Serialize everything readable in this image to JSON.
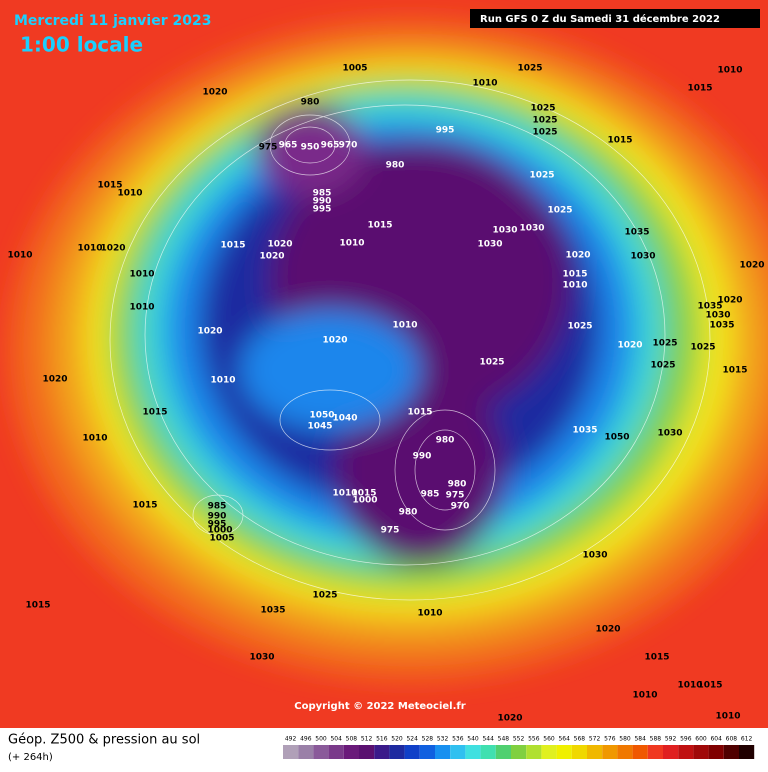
{
  "header": {
    "date": "Mercredi 11 janvier 2023",
    "time": "1:00 locale",
    "run": "Run GFS 0 Z du Samedi 31 décembre 2022"
  },
  "map": {
    "copyright": "Copyright © 2022 Meteociel.fr",
    "pressure_labels": [
      1005,
      1025,
      1010,
      1025,
      1020,
      1010,
      1015,
      980,
      1025,
      995,
      1025,
      975,
      965,
      950,
      965,
      970,
      980,
      1015,
      1025,
      985,
      990,
      995,
      1015,
      1010,
      1025,
      1015,
      1030,
      1030,
      1035,
      1015,
      1020,
      1010,
      1030,
      1020,
      1020,
      1030,
      1010,
      1010,
      1020,
      1020,
      1010,
      1015,
      1010,
      1010,
      1035,
      1020,
      1030,
      1035,
      1010,
      1025,
      1020,
      1020,
      1020,
      1025,
      1025,
      1025,
      1025,
      1015,
      1020,
      1010,
      1015,
      1015,
      1050,
      1040,
      1045,
      1035,
      1010,
      1050,
      1030,
      980,
      990,
      1010,
      1015,
      985,
      975,
      980,
      970,
      980,
      1000,
      1015,
      985,
      990,
      995,
      1000,
      1005,
      975,
      1030,
      1025,
      1035,
      1015,
      1010,
      1020,
      1030,
      1015,
      1010,
      1010,
      1015,
      1020,
      1010
    ]
  },
  "footer": {
    "title": "Géop. Z500 & pression au sol",
    "subtitle": "(+ 264h)"
  },
  "legend": {
    "scale": [
      492,
      496,
      500,
      504,
      508,
      512,
      516,
      520,
      524,
      528,
      532,
      536,
      540,
      544,
      548,
      552,
      556,
      560,
      564,
      568,
      572,
      576,
      580,
      584,
      588,
      592,
      596,
      600,
      604,
      608,
      612
    ],
    "colors": [
      "#b0a0b8",
      "#9a80a8",
      "#8a5a9a",
      "#7a3a8a",
      "#6a1a7a",
      "#5a1070",
      "#3a1a8a",
      "#1e2aa0",
      "#1040c8",
      "#1060e0",
      "#1890f0",
      "#30c0f0",
      "#40e0e0",
      "#40e0b0",
      "#50d070",
      "#80d040",
      "#b0e030",
      "#e0f020",
      "#f0f000",
      "#f0d800",
      "#f0b800",
      "#f09800",
      "#f07800",
      "#f05800",
      "#f03820",
      "#e02020",
      "#c01010",
      "#a00808",
      "#800000",
      "#500000",
      "#200000"
    ]
  }
}
